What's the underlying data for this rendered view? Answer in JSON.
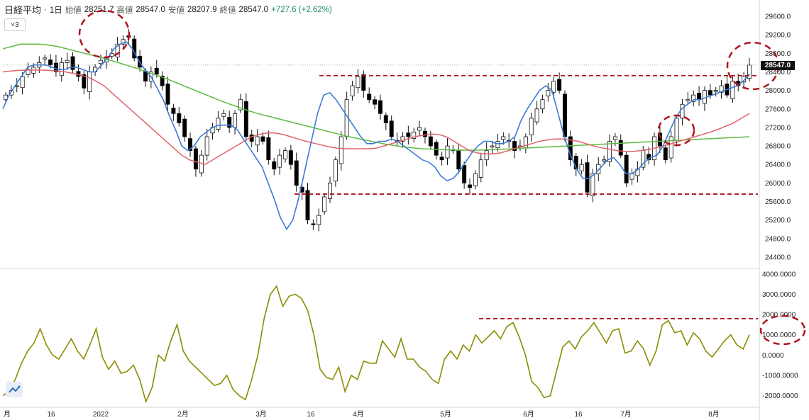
{
  "header": {
    "symbol": "日経平均",
    "interval": "1日",
    "open_label": "始値",
    "open_value": "28251.7",
    "high_label": "高値",
    "high_value": "28547.0",
    "low_label": "安値",
    "low_value": "28207.9",
    "close_label": "終値",
    "close_value": "28547.0",
    "change": "+727.6 (+2.62%)"
  },
  "indicator_toggle": "3",
  "price_badge": "28547.0",
  "colors": {
    "ma_fast": "#3b7bd4",
    "ma_mid": "#e0636b",
    "ma_slow": "#5bbb3f",
    "oscillator": "#8c8c00",
    "annotation": "#b0141e",
    "candle_up_fill": "#ffffff",
    "candle_down_fill": "#000000"
  },
  "chart_data": [
    {
      "type": "candlestick",
      "title": "日経平均 1日",
      "y_ticks": [
        "29600.0",
        "29200.0",
        "28800.0",
        "28400.0",
        "28000.0",
        "27600.0",
        "27200.0",
        "26800.0",
        "26400.0",
        "26000.0",
        "25600.0",
        "25200.0",
        "24800.0",
        "24400.0"
      ],
      "ylim": [
        24200,
        29800
      ],
      "x_ticks": [
        "月",
        "16",
        "2022",
        "2月",
        "3月",
        "16",
        "4月",
        "5月",
        "6月",
        "16",
        "7月",
        "8月"
      ],
      "series": [
        {
          "name": "close",
          "values": [
            27900,
            28000,
            28100,
            28300,
            28450,
            28500,
            28600,
            28700,
            28550,
            28400,
            28600,
            28650,
            28450,
            28300,
            28050,
            28400,
            28500,
            28650,
            28700,
            28800,
            29000,
            29100,
            29150,
            28700,
            28500,
            28200,
            28400,
            28350,
            28100,
            27700,
            27500,
            27300,
            27000,
            26700,
            26300,
            26600,
            27000,
            27200,
            27400,
            27500,
            27200,
            27500,
            27800,
            27000,
            26900,
            27000,
            26900,
            26500,
            26300,
            26600,
            26700,
            26400,
            25950,
            25800,
            25200,
            25100,
            25300,
            25700,
            26000,
            26500,
            27000,
            27800,
            28100,
            28300,
            28000,
            27800,
            27700,
            27500,
            27300,
            27000,
            26900,
            27000,
            27000,
            27100,
            27200,
            27000,
            26800,
            26600,
            26500,
            26800,
            26700,
            26300,
            26000,
            25900,
            26200,
            26500,
            26700,
            26800,
            26900,
            27000,
            26900,
            26700,
            26800,
            27000,
            27400,
            27600,
            27800,
            28000,
            28200,
            28000,
            27000,
            26500,
            26300,
            26400,
            25800,
            26200,
            26400,
            26500,
            26900,
            27000,
            26600,
            26000,
            26200,
            26300,
            26700,
            26500,
            27000,
            26800,
            26500,
            27000,
            27400,
            27700,
            27800,
            27900,
            27800,
            28000,
            27900,
            28000,
            28100,
            27900,
            28200,
            28100,
            28300,
            28547
          ]
        },
        {
          "name": "ma_fast",
          "values": [
            27600,
            27900,
            28100,
            28300,
            28500,
            28550,
            28550,
            28550,
            28500,
            28450,
            28450,
            28500,
            28500,
            28450,
            28400,
            28400,
            28550,
            28700,
            28900,
            29000,
            29050,
            28900,
            28650,
            28450,
            28300,
            28050,
            27800,
            27450,
            27150,
            26800,
            26700,
            26800,
            27000,
            27100,
            27200,
            27250,
            27250,
            27250,
            27150,
            26950,
            26750,
            26550,
            26350,
            26000,
            25650,
            25250,
            25000,
            25200,
            25700,
            26300,
            26900,
            27500,
            27900,
            27950,
            27800,
            27600,
            27400,
            27200,
            27000,
            26850,
            26850,
            26900,
            26900,
            26950,
            26900,
            26800,
            26700,
            26600,
            26500,
            26450,
            26350,
            26150,
            26050,
            26100,
            26250,
            26450,
            26650,
            26800,
            26900,
            26900,
            26850,
            26850,
            26900,
            27000,
            27350,
            27600,
            27800,
            28000,
            28100,
            28000,
            27500,
            27000,
            26600,
            26300,
            26100,
            26100,
            26200,
            26350,
            26500,
            26550,
            26400,
            26200,
            26200,
            26300,
            26450,
            26550,
            26600,
            26800,
            27100,
            27400,
            27600,
            27700,
            27800,
            27800,
            27850,
            27900,
            27950,
            28000,
            28050,
            28100,
            28200,
            28350
          ]
        },
        {
          "name": "ma_mid",
          "values": [
            28400,
            28420,
            28430,
            28440,
            28440,
            28440,
            28430,
            28420,
            28400,
            28370,
            28330,
            28280,
            28200,
            28100,
            27950,
            27800,
            27650,
            27500,
            27350,
            27200,
            27050,
            26900,
            26750,
            26600,
            26500,
            26450,
            26400,
            26500,
            26600,
            26700,
            26800,
            26900,
            27000,
            27050,
            27080,
            27080,
            27050,
            27000,
            26950,
            26900,
            26860,
            26820,
            26780,
            26750,
            26740,
            26740,
            26740,
            26740,
            26750,
            26800,
            26850,
            26900,
            26950,
            27000,
            27030,
            27060,
            27050,
            27000,
            26900,
            26800,
            26700,
            26650,
            26630,
            26630,
            26650,
            26700,
            26750,
            26800,
            26850,
            26900,
            26930,
            26950,
            26950,
            26930,
            26900,
            26850,
            26800,
            26760,
            26730,
            26700,
            26680,
            26680,
            26700,
            26720,
            26760,
            26800,
            26850,
            26900,
            26950,
            27000,
            27050,
            27100,
            27160,
            27230,
            27300,
            27400,
            27500
          ]
        },
        {
          "name": "ma_slow",
          "values": [
            28900,
            28950,
            29000,
            29000,
            29000,
            28980,
            28950,
            28900,
            28850,
            28800,
            28750,
            28700,
            28640,
            28580,
            28520,
            28460,
            28390,
            28320,
            28250,
            28170,
            28090,
            28010,
            27930,
            27850,
            27770,
            27700,
            27630,
            27560,
            27500,
            27450,
            27400,
            27350,
            27300,
            27250,
            27200,
            27150,
            27100,
            27050,
            27000,
            26960,
            26920,
            26880,
            26840,
            26810,
            26780,
            26760,
            26740,
            26730,
            26720,
            26715,
            26710,
            26710,
            26710,
            26715,
            26720,
            26730,
            26740,
            26750,
            26760,
            26770,
            26780,
            26790,
            26800,
            26810,
            26820,
            26830,
            26840,
            26850,
            26860,
            26870,
            26880,
            26890,
            26900,
            26910,
            26920,
            26930,
            26940,
            26950,
            26960,
            26970,
            26980,
            26990,
            27000
          ]
        }
      ]
    },
    {
      "type": "line",
      "y_ticks": [
        "4000.0000",
        "3000.0000",
        "2000.0000",
        "1000.0000",
        "0.0000",
        "-1000.0000",
        "-2000.0000"
      ],
      "ylim": [
        -2400,
        4100
      ],
      "series": [
        {
          "name": "oscillator",
          "values": [
            -2000,
            -1800,
            -1200,
            -400,
            200,
            600,
            1300,
            500,
            0,
            -200,
            300,
            800,
            200,
            -200,
            500,
            1300,
            -100,
            -700,
            -300,
            -900,
            -800,
            -500,
            -1200,
            -2300,
            -1600,
            0,
            -300,
            700,
            1500,
            200,
            -300,
            -600,
            -900,
            -1200,
            -1500,
            -1400,
            -1000,
            -1700,
            -2000,
            -2200,
            -1200,
            0,
            1800,
            3000,
            3400,
            2400,
            2900,
            3000,
            2800,
            2200,
            1000,
            -700,
            -1100,
            -1200,
            -600,
            -1800,
            -1000,
            -1200,
            -300,
            -400,
            -400,
            700,
            300,
            -100,
            800,
            -200,
            -200,
            -600,
            -800,
            -1200,
            -1400,
            -200,
            200,
            -200,
            500,
            200,
            1000,
            600,
            900,
            1200,
            800,
            1400,
            1600,
            900,
            0,
            -1300,
            -1600,
            -2100,
            -2000,
            -800,
            400,
            700,
            300,
            900,
            1200,
            1600,
            1100,
            600,
            1200,
            1300,
            100,
            200,
            700,
            300,
            -500,
            200,
            1500,
            1700,
            1100,
            1200,
            500,
            1100,
            800,
            200,
            -100,
            300,
            700,
            1000,
            500,
            300,
            1000
          ]
        }
      ],
      "reference_line": 1800
    }
  ]
}
